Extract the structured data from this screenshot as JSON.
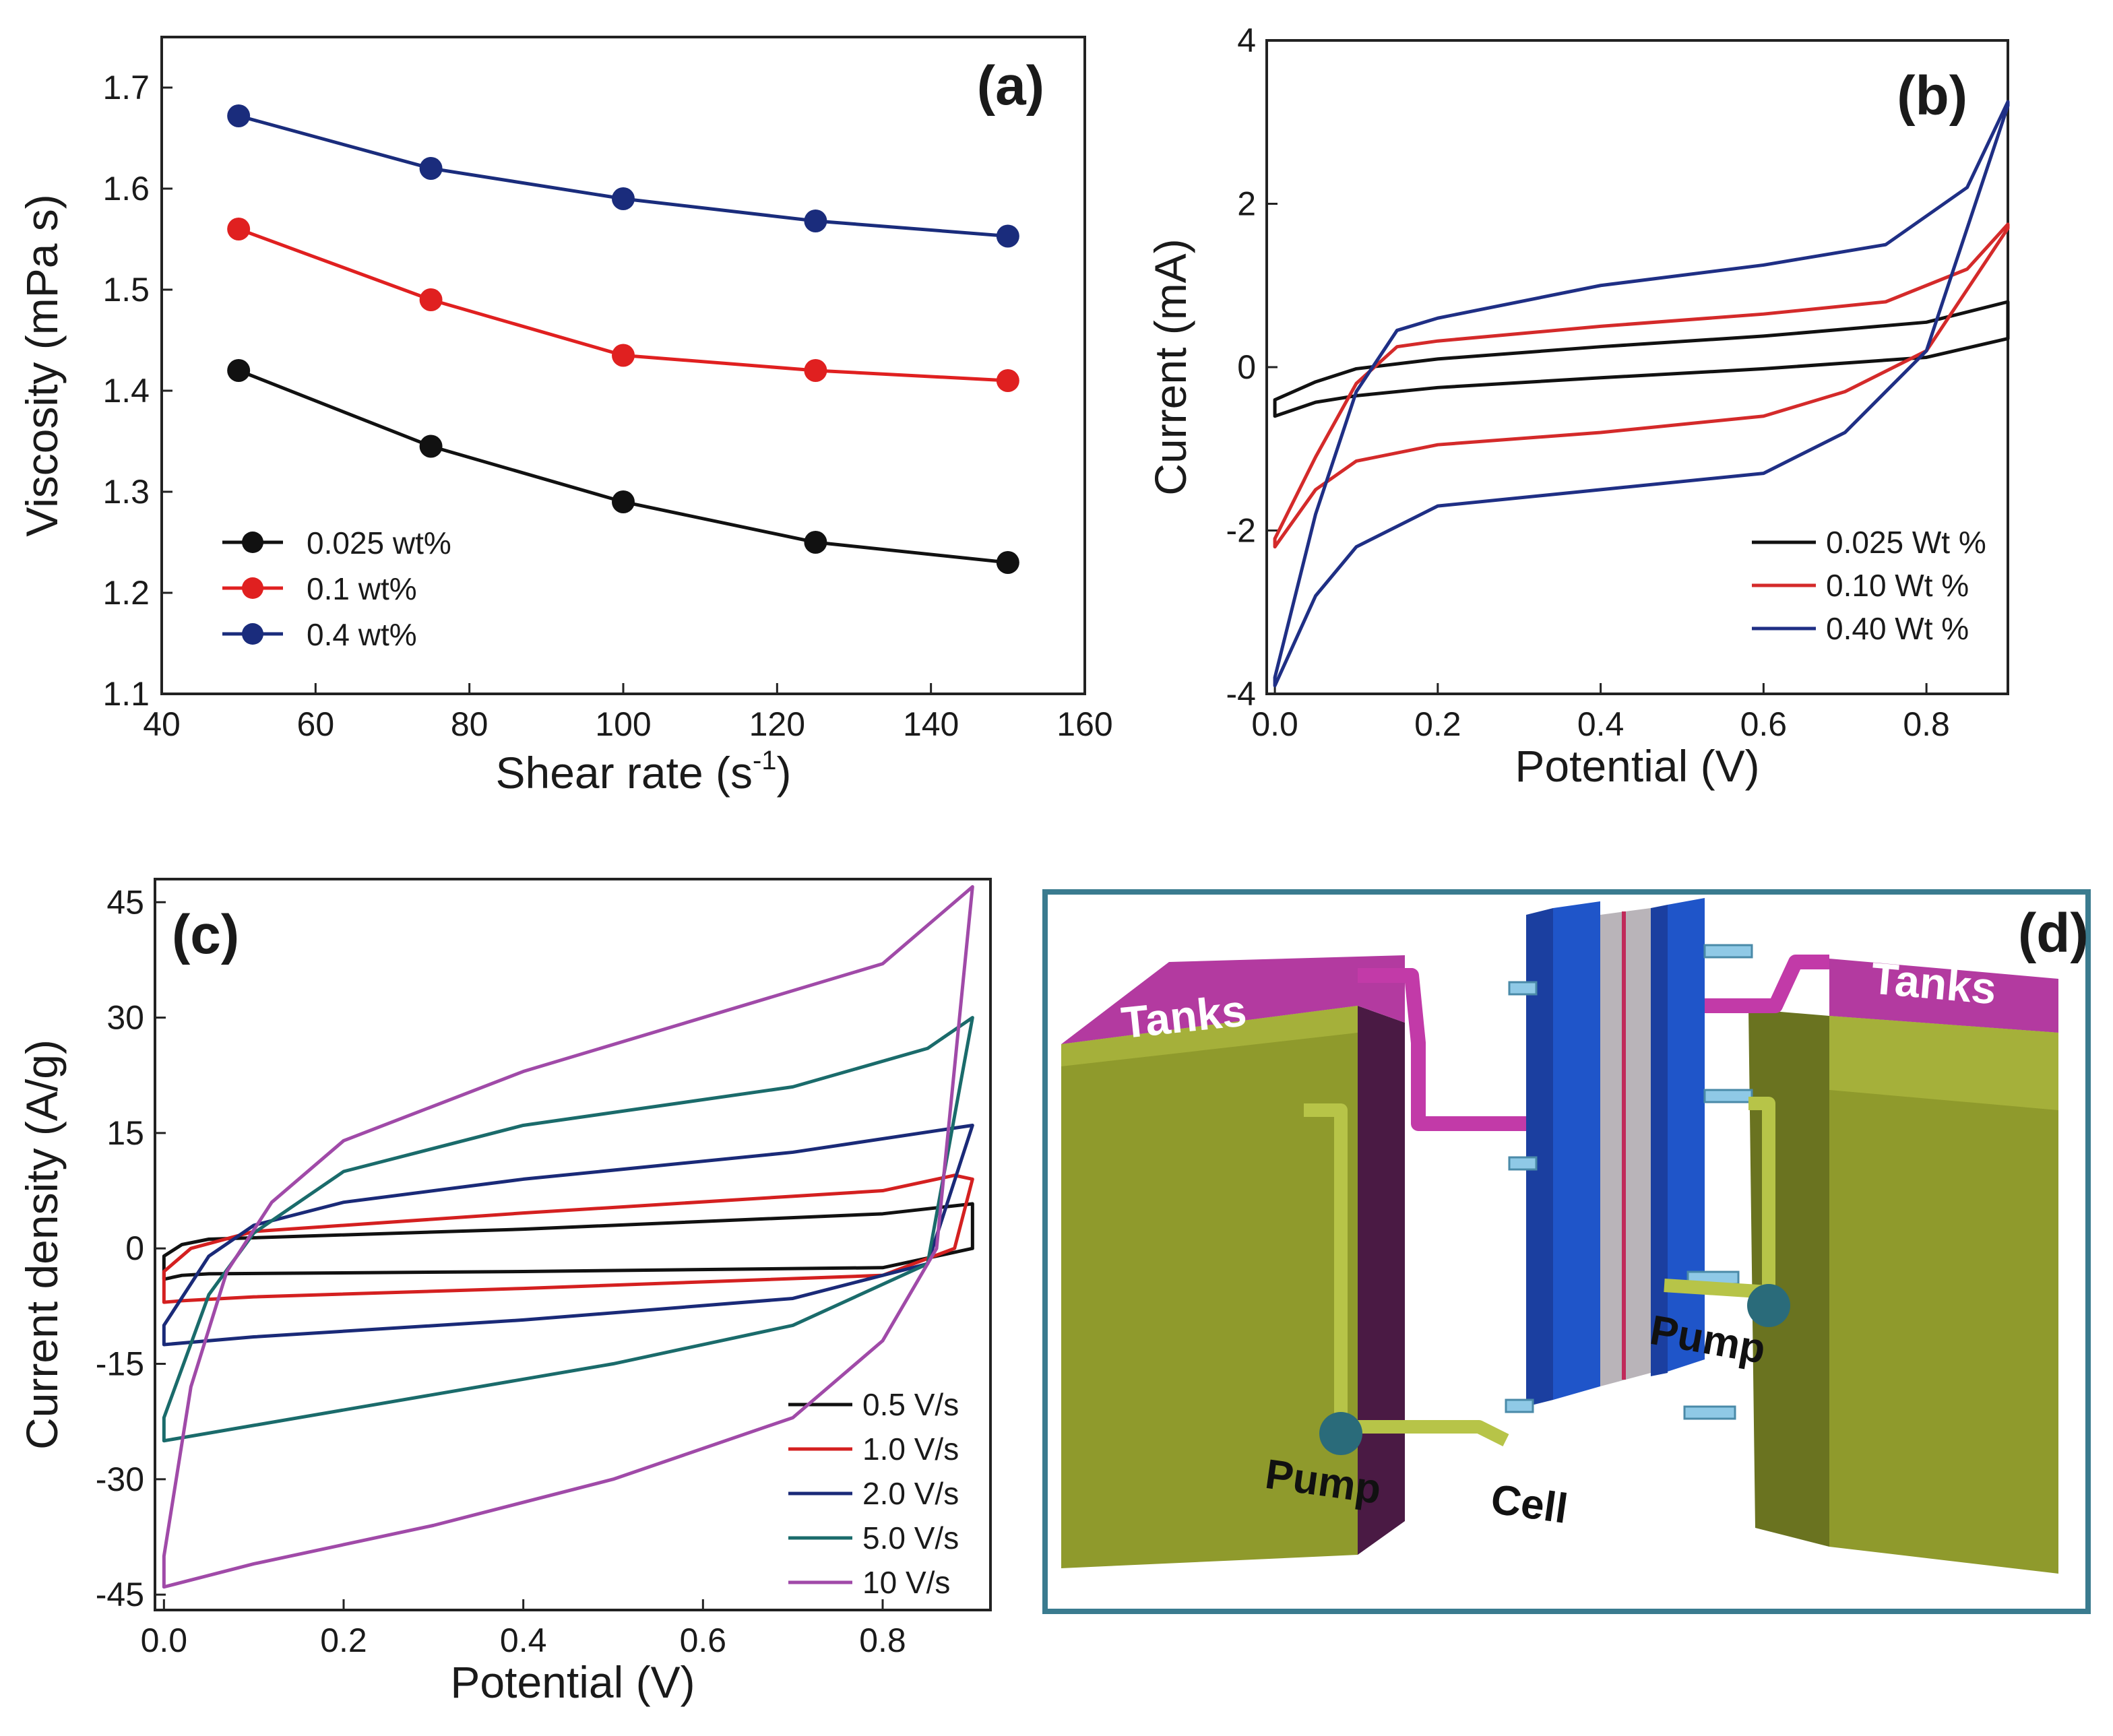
{
  "chart_data": [
    {
      "panel": "(a)",
      "type": "line",
      "xlabel": "Shear rate (s",
      "xlabel_sup": "-1",
      "xlabel_end": ")",
      "ylabel": "Viscosity (mPa s)",
      "xlim": [
        40,
        160
      ],
      "ylim": [
        1.1,
        1.75
      ],
      "xticks": [
        "40",
        "60",
        "80",
        "100",
        "120",
        "140",
        "160"
      ],
      "yticks": [
        "1.1",
        "1.2",
        "1.3",
        "1.4",
        "1.5",
        "1.6",
        "1.7"
      ],
      "x": [
        50,
        75,
        100,
        125,
        150
      ],
      "series": [
        {
          "name": "0.025 wt%",
          "color": "#111111",
          "values": [
            1.42,
            1.345,
            1.29,
            1.25,
            1.23
          ]
        },
        {
          "name": "0.1 wt%",
          "color": "#e02020",
          "values": [
            1.56,
            1.49,
            1.435,
            1.42,
            1.41
          ]
        },
        {
          "name": "0.4 wt%",
          "color": "#1a2c7c",
          "values": [
            1.672,
            1.62,
            1.59,
            1.568,
            1.553
          ]
        }
      ]
    },
    {
      "panel": "(b)",
      "type": "line",
      "xlabel": "Potential (V)",
      "ylabel": "Current (mA)",
      "xlim": [
        -0.01,
        0.9
      ],
      "ylim": [
        -4,
        4
      ],
      "xticks": [
        "0.0",
        "0.2",
        "0.4",
        "0.6",
        "0.8"
      ],
      "yticks": [
        "-4",
        "-2",
        "0",
        "2",
        "4"
      ],
      "series": [
        {
          "name": "0.025 Wt %",
          "color": "#111111",
          "lower": [
            [
              0.0,
              -0.6
            ],
            [
              0.05,
              -0.43
            ],
            [
              0.1,
              -0.35
            ],
            [
              0.2,
              -0.25
            ],
            [
              0.4,
              -0.13
            ],
            [
              0.6,
              -0.02
            ],
            [
              0.8,
              0.12
            ],
            [
              0.9,
              0.35
            ]
          ],
          "upper": [
            [
              0.0,
              -0.4
            ],
            [
              0.05,
              -0.18
            ],
            [
              0.1,
              -0.02
            ],
            [
              0.2,
              0.1
            ],
            [
              0.4,
              0.25
            ],
            [
              0.6,
              0.38
            ],
            [
              0.8,
              0.55
            ],
            [
              0.9,
              0.8
            ]
          ]
        },
        {
          "name": "0.10 Wt %",
          "color": "#d42a2a",
          "lower": [
            [
              0.0,
              -2.2
            ],
            [
              0.05,
              -1.5
            ],
            [
              0.1,
              -1.15
            ],
            [
              0.2,
              -0.95
            ],
            [
              0.4,
              -0.8
            ],
            [
              0.6,
              -0.6
            ],
            [
              0.7,
              -0.3
            ],
            [
              0.8,
              0.2
            ],
            [
              0.9,
              1.7
            ]
          ],
          "upper": [
            [
              0.0,
              -2.1
            ],
            [
              0.05,
              -1.1
            ],
            [
              0.1,
              -0.2
            ],
            [
              0.15,
              0.25
            ],
            [
              0.2,
              0.32
            ],
            [
              0.4,
              0.5
            ],
            [
              0.6,
              0.65
            ],
            [
              0.75,
              0.8
            ],
            [
              0.85,
              1.2
            ],
            [
              0.9,
              1.75
            ]
          ]
        },
        {
          "name": "0.40 Wt %",
          "color": "#1f2f85",
          "lower": [
            [
              0.0,
              -3.9
            ],
            [
              0.05,
              -2.8
            ],
            [
              0.1,
              -2.2
            ],
            [
              0.2,
              -1.7
            ],
            [
              0.4,
              -1.5
            ],
            [
              0.6,
              -1.3
            ],
            [
              0.7,
              -0.8
            ],
            [
              0.8,
              0.2
            ],
            [
              0.9,
              3.2
            ]
          ],
          "upper": [
            [
              0.0,
              -3.8
            ],
            [
              0.05,
              -1.8
            ],
            [
              0.1,
              -0.3
            ],
            [
              0.15,
              0.45
            ],
            [
              0.2,
              0.6
            ],
            [
              0.4,
              1.0
            ],
            [
              0.6,
              1.25
            ],
            [
              0.75,
              1.5
            ],
            [
              0.85,
              2.2
            ],
            [
              0.9,
              3.25
            ]
          ]
        }
      ]
    },
    {
      "panel": "(c)",
      "type": "line",
      "xlabel": "Potential (V)",
      "ylabel": "Current density (A/g)",
      "xlim": [
        -0.01,
        0.92
      ],
      "ylim": [
        -47,
        48
      ],
      "xticks": [
        "0.0",
        "0.2",
        "0.4",
        "0.6",
        "0.8"
      ],
      "yticks": [
        "45",
        "30",
        "15",
        "0",
        "-15",
        "-30",
        "-45"
      ],
      "series": [
        {
          "name": "0.5 V/s",
          "color": "#111111",
          "lower": [
            [
              0.0,
              -4
            ],
            [
              0.02,
              -3.5
            ],
            [
              0.05,
              -3.3
            ],
            [
              0.4,
              -3.0
            ],
            [
              0.8,
              -2.5
            ],
            [
              0.9,
              0
            ]
          ],
          "upper": [
            [
              0.0,
              -1
            ],
            [
              0.02,
              0.5
            ],
            [
              0.05,
              1.2
            ],
            [
              0.4,
              2.5
            ],
            [
              0.8,
              4.5
            ],
            [
              0.9,
              5.8
            ]
          ]
        },
        {
          "name": "1.0 V/s",
          "color": "#d42020",
          "lower": [
            [
              0.0,
              -7
            ],
            [
              0.02,
              -6.8
            ],
            [
              0.1,
              -6.3
            ],
            [
              0.4,
              -5.2
            ],
            [
              0.8,
              -3.5
            ],
            [
              0.88,
              0
            ],
            [
              0.9,
              9
            ]
          ],
          "upper": [
            [
              0.0,
              -3
            ],
            [
              0.03,
              0
            ],
            [
              0.1,
              2.2
            ],
            [
              0.4,
              4.6
            ],
            [
              0.8,
              7.5
            ],
            [
              0.88,
              9.5
            ]
          ]
        },
        {
          "name": "2.0 V/s",
          "color": "#1a2a78",
          "lower": [
            [
              0.0,
              -12.5
            ],
            [
              0.1,
              -11.5
            ],
            [
              0.4,
              -9.3
            ],
            [
              0.7,
              -6.5
            ],
            [
              0.85,
              -2
            ],
            [
              0.9,
              16
            ]
          ],
          "upper": [
            [
              0.0,
              -10
            ],
            [
              0.05,
              -1
            ],
            [
              0.1,
              3
            ],
            [
              0.2,
              6
            ],
            [
              0.4,
              9
            ],
            [
              0.7,
              12.5
            ],
            [
              0.9,
              16
            ]
          ]
        },
        {
          "name": "5.0 V/s",
          "color": "#1a6b6b",
          "lower": [
            [
              0.0,
              -25
            ],
            [
              0.1,
              -23
            ],
            [
              0.3,
              -19
            ],
            [
              0.5,
              -15
            ],
            [
              0.7,
              -10
            ],
            [
              0.85,
              -2
            ],
            [
              0.9,
              30
            ]
          ],
          "upper": [
            [
              0.0,
              -22
            ],
            [
              0.05,
              -6
            ],
            [
              0.1,
              2
            ],
            [
              0.2,
              10
            ],
            [
              0.4,
              16
            ],
            [
              0.7,
              21
            ],
            [
              0.85,
              26
            ],
            [
              0.9,
              30
            ]
          ]
        },
        {
          "name": "10 V/s",
          "color": "#a04aa8",
          "lower": [
            [
              0.0,
              -44
            ],
            [
              0.1,
              -41
            ],
            [
              0.3,
              -36
            ],
            [
              0.5,
              -30
            ],
            [
              0.7,
              -22
            ],
            [
              0.8,
              -12
            ],
            [
              0.86,
              0
            ],
            [
              0.9,
              47
            ]
          ],
          "upper": [
            [
              0.0,
              -40
            ],
            [
              0.03,
              -18
            ],
            [
              0.07,
              -3
            ],
            [
              0.12,
              6
            ],
            [
              0.2,
              14
            ],
            [
              0.4,
              23
            ],
            [
              0.6,
              30
            ],
            [
              0.8,
              37
            ],
            [
              0.9,
              47
            ]
          ]
        }
      ]
    }
  ],
  "diagram": {
    "panel": "(d)",
    "left_tank_label": "Tanks",
    "right_tank_label": "Tanks",
    "left_pump_label": "Pump",
    "right_pump_label": "Pump",
    "cell_label": "Cell",
    "colors": {
      "tank": "#8f9a2c",
      "tank_top": "#b8c44a",
      "tank_cap": "#b33aa0",
      "frame": "#1f55c9",
      "pipe": "#b7c448",
      "pipe_pink": "#c23aa8",
      "border": "#3a7b8f"
    }
  }
}
